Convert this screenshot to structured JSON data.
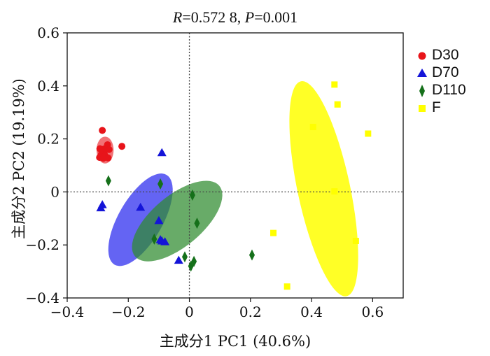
{
  "chart_data": {
    "type": "scatter",
    "title": "R=0.572 8, P=0.001",
    "title_parts": {
      "r_sym": "R",
      "r_val": "=0.572 8, ",
      "p_sym": "P",
      "p_val": "=0.001"
    },
    "xlabel": "主成分1 PC1 (40.6%)",
    "ylabel": "主成分2 PC2 (19.19%)",
    "xlim": [
      -0.4,
      0.7
    ],
    "ylim": [
      -0.4,
      0.6
    ],
    "x_ticks": [
      -0.4,
      -0.2,
      0,
      0.2,
      0.4,
      0.6
    ],
    "x_tick_labels": [
      "−0.4",
      "−0.2",
      "0",
      "0.2",
      "0.4",
      "0.6"
    ],
    "y_ticks": [
      -0.4,
      -0.2,
      0,
      0.2,
      0.4,
      0.6
    ],
    "y_tick_labels": [
      "−0.4",
      "−0.2",
      "0",
      "0.2",
      "0.4",
      "0.6"
    ],
    "reference_lines": {
      "x": 0,
      "y": 0,
      "style": "dotted"
    },
    "grid": false,
    "legend_position": "right",
    "series": [
      {
        "name": "D30",
        "marker": "circle",
        "color": "#e8141a",
        "x": [
          -0.285,
          -0.268,
          -0.293,
          -0.279,
          -0.272,
          -0.263,
          -0.288,
          -0.276,
          -0.266,
          -0.294,
          -0.282,
          -0.221
        ],
        "y": [
          0.232,
          0.178,
          0.163,
          0.162,
          0.16,
          0.16,
          0.142,
          0.137,
          0.128,
          0.13,
          0.127,
          0.172
        ],
        "ellipse": {
          "cx": -0.276,
          "cy": 0.158,
          "rx": 0.028,
          "ry": 0.044,
          "angle": 0,
          "color": "#e8141a",
          "opacity": 0.6
        }
      },
      {
        "name": "D70",
        "marker": "triangle",
        "color": "#1414d8",
        "x": [
          -0.29,
          -0.285,
          -0.16,
          -0.1,
          -0.09,
          -0.095,
          -0.08,
          -0.035,
          -0.09
        ],
        "y": [
          -0.06,
          -0.048,
          -0.058,
          -0.108,
          -0.185,
          -0.18,
          -0.188,
          -0.258,
          0.148
        ],
        "ellipse": {
          "cx": -0.16,
          "cy": -0.105,
          "rx": 0.17,
          "ry": 0.072,
          "angle": 60,
          "color": "#2222ee",
          "opacity": 0.7
        }
      },
      {
        "name": "D110",
        "marker": "diamond",
        "color": "#15701a",
        "x": [
          -0.265,
          -0.115,
          -0.095,
          0.01,
          0.025,
          -0.015,
          0.015,
          0.005,
          0.205
        ],
        "y": [
          0.042,
          -0.178,
          0.03,
          -0.012,
          -0.118,
          -0.245,
          -0.262,
          -0.28,
          -0.238
        ],
        "ellipse": {
          "cx": -0.04,
          "cy": -0.11,
          "rx": 0.18,
          "ry": 0.083,
          "angle": 40,
          "color": "#2e8b2e",
          "opacity": 0.72
        }
      },
      {
        "name": "F",
        "marker": "square",
        "color": "#ffff00",
        "x": [
          0.475,
          0.485,
          0.405,
          0.585,
          0.475,
          0.275,
          0.545,
          0.32
        ],
        "y": [
          0.405,
          0.33,
          0.245,
          0.22,
          0.002,
          -0.155,
          -0.185,
          -0.357
        ],
        "ellipse": {
          "cx": 0.44,
          "cy": 0.012,
          "rx": 0.36,
          "ry": 0.086,
          "angle": -78,
          "color": "#ffff00",
          "opacity": 0.85
        }
      }
    ]
  }
}
